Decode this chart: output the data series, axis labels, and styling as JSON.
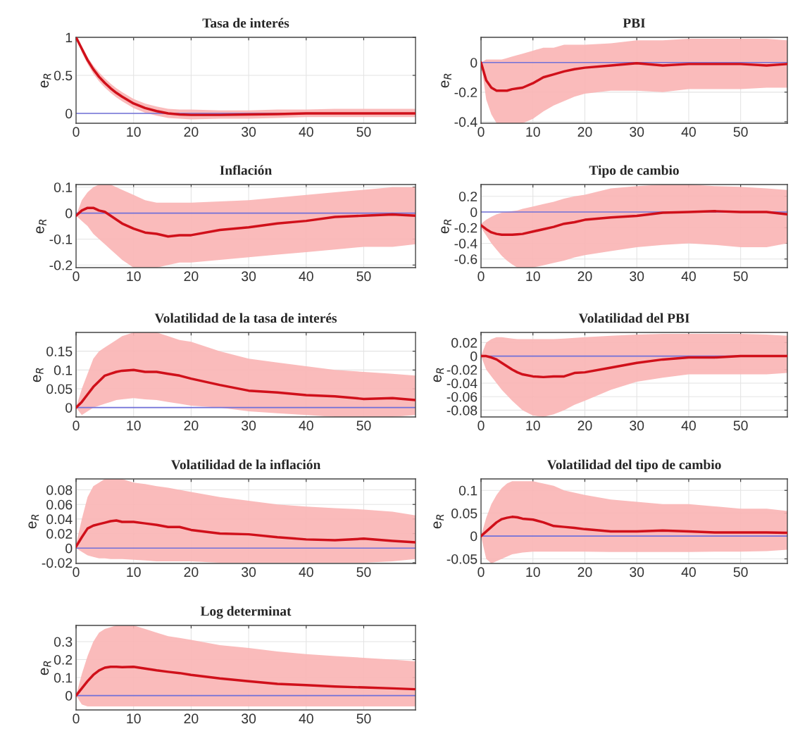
{
  "chart_data": [
    {
      "type": "line",
      "title": "Tasa de interés",
      "ylabel": "e$_{R}$",
      "xlim": [
        0,
        59
      ],
      "xticks": [
        0,
        10,
        20,
        30,
        40,
        50
      ],
      "ylim": [
        -0.13,
        1
      ],
      "yticks": [
        0,
        0.5,
        1
      ],
      "grid": true,
      "ref_lines": [
        {
          "axis": "y",
          "value": 0,
          "color": "#7070d8"
        }
      ],
      "x": [
        0,
        1,
        2,
        3,
        4,
        5,
        6,
        7,
        8,
        10,
        12,
        14,
        16,
        18,
        20,
        25,
        30,
        35,
        40,
        45,
        50,
        55,
        59
      ],
      "series": [
        {
          "color": "#d0101a",
          "values": [
            1,
            0.85,
            0.7,
            0.58,
            0.48,
            0.4,
            0.33,
            0.27,
            0.22,
            0.13,
            0.07,
            0.03,
            0,
            -0.015,
            -0.02,
            -0.02,
            -0.015,
            -0.01,
            0,
            0,
            0,
            0,
            0
          ],
          "lower": [
            1,
            0.8,
            0.65,
            0.52,
            0.42,
            0.34,
            0.27,
            0.21,
            0.16,
            0.07,
            0.01,
            -0.03,
            -0.06,
            -0.07,
            -0.08,
            -0.07,
            -0.07,
            -0.06,
            -0.05,
            -0.05,
            -0.05,
            -0.05,
            -0.05
          ],
          "upper": [
            1,
            0.88,
            0.74,
            0.63,
            0.54,
            0.46,
            0.39,
            0.33,
            0.28,
            0.19,
            0.13,
            0.09,
            0.06,
            0.05,
            0.05,
            0.04,
            0.04,
            0.05,
            0.05,
            0.06,
            0.06,
            0.06,
            0.06
          ]
        }
      ]
    },
    {
      "type": "line",
      "title": "PBI",
      "ylabel": "e$_{R}$",
      "xlim": [
        0,
        59
      ],
      "xticks": [
        0,
        10,
        20,
        30,
        40,
        50
      ],
      "ylim": [
        -0.41,
        0.17
      ],
      "yticks": [
        -0.4,
        -0.2,
        0
      ],
      "grid": true,
      "ref_lines": [
        {
          "axis": "y",
          "value": 0,
          "color": "#7070d8"
        }
      ],
      "x": [
        0,
        1,
        2,
        3,
        4,
        5,
        6,
        7,
        8,
        10,
        12,
        14,
        16,
        18,
        20,
        25,
        30,
        35,
        40,
        45,
        50,
        55,
        59
      ],
      "series": [
        {
          "color": "#d0101a",
          "values": [
            0,
            -0.12,
            -0.17,
            -0.19,
            -0.19,
            -0.19,
            -0.18,
            -0.175,
            -0.17,
            -0.14,
            -0.1,
            -0.08,
            -0.06,
            -0.045,
            -0.035,
            -0.02,
            -0.005,
            -0.02,
            -0.01,
            -0.01,
            -0.01,
            -0.02,
            -0.01
          ],
          "lower": [
            0,
            -0.25,
            -0.35,
            -0.41,
            -0.41,
            -0.41,
            -0.41,
            -0.41,
            -0.41,
            -0.38,
            -0.33,
            -0.29,
            -0.26,
            -0.23,
            -0.21,
            -0.19,
            -0.19,
            -0.2,
            -0.18,
            -0.18,
            -0.18,
            -0.17,
            -0.17
          ],
          "upper": [
            0,
            0.02,
            0.02,
            0.02,
            0.02,
            0.03,
            0.04,
            0.05,
            0.06,
            0.08,
            0.1,
            0.1,
            0.12,
            0.12,
            0.12,
            0.13,
            0.15,
            0.15,
            0.16,
            0.16,
            0.16,
            0.16,
            0.15
          ]
        }
      ]
    },
    {
      "type": "line",
      "title": "Inflación",
      "ylabel": "e$_{R}$",
      "xlim": [
        0,
        59
      ],
      "xticks": [
        0,
        10,
        20,
        30,
        40,
        50
      ],
      "ylim": [
        -0.21,
        0.11
      ],
      "yticks": [
        -0.2,
        -0.1,
        0,
        0.1
      ],
      "grid": true,
      "ref_lines": [
        {
          "axis": "y",
          "value": 0,
          "color": "#7070d8"
        }
      ],
      "x": [
        0,
        1,
        2,
        3,
        4,
        5,
        6,
        7,
        8,
        10,
        12,
        14,
        16,
        18,
        20,
        25,
        30,
        35,
        40,
        45,
        50,
        55,
        59
      ],
      "series": [
        {
          "color": "#d0101a",
          "values": [
            -0.01,
            0.01,
            0.02,
            0.02,
            0.01,
            0.005,
            -0.01,
            -0.025,
            -0.04,
            -0.06,
            -0.075,
            -0.08,
            -0.09,
            -0.085,
            -0.085,
            -0.065,
            -0.055,
            -0.04,
            -0.03,
            -0.015,
            -0.01,
            -0.005,
            -0.01
          ],
          "lower": [
            -0.01,
            -0.03,
            -0.05,
            -0.08,
            -0.1,
            -0.12,
            -0.14,
            -0.16,
            -0.18,
            -0.21,
            -0.21,
            -0.21,
            -0.2,
            -0.19,
            -0.19,
            -0.18,
            -0.17,
            -0.16,
            -0.15,
            -0.14,
            -0.13,
            -0.13,
            -0.12
          ],
          "upper": [
            -0.01,
            0.05,
            0.08,
            0.1,
            0.11,
            0.11,
            0.11,
            0.1,
            0.09,
            0.07,
            0.05,
            0.04,
            0.04,
            0.04,
            0.04,
            0.045,
            0.05,
            0.06,
            0.07,
            0.08,
            0.09,
            0.1,
            0.1
          ]
        }
      ]
    },
    {
      "type": "line",
      "title": "Tipo de cambio",
      "ylabel": "e$_{R}$",
      "xlim": [
        0,
        59
      ],
      "xticks": [
        0,
        10,
        20,
        30,
        40,
        50
      ],
      "ylim": [
        -0.71,
        0.35
      ],
      "yticks": [
        -0.6,
        -0.4,
        -0.2,
        0,
        0.2
      ],
      "grid": true,
      "ref_lines": [
        {
          "axis": "y",
          "value": 0,
          "color": "#7070d8"
        }
      ],
      "x": [
        0,
        1,
        2,
        3,
        4,
        5,
        6,
        7,
        8,
        10,
        12,
        14,
        16,
        18,
        20,
        25,
        30,
        35,
        40,
        45,
        50,
        55,
        59
      ],
      "series": [
        {
          "color": "#d0101a",
          "values": [
            -0.17,
            -0.22,
            -0.26,
            -0.28,
            -0.29,
            -0.29,
            -0.29,
            -0.285,
            -0.28,
            -0.25,
            -0.22,
            -0.19,
            -0.15,
            -0.13,
            -0.1,
            -0.07,
            -0.05,
            -0.01,
            0,
            0.01,
            0,
            0,
            -0.03
          ],
          "lower": [
            -0.2,
            -0.3,
            -0.4,
            -0.48,
            -0.56,
            -0.62,
            -0.67,
            -0.71,
            -0.71,
            -0.71,
            -0.68,
            -0.65,
            -0.62,
            -0.58,
            -0.55,
            -0.5,
            -0.45,
            -0.42,
            -0.4,
            -0.42,
            -0.45,
            -0.45,
            -0.4
          ],
          "upper": [
            -0.15,
            -0.1,
            -0.06,
            -0.03,
            -0.01,
            0,
            0.01,
            0.02,
            0.04,
            0.07,
            0.1,
            0.13,
            0.17,
            0.2,
            0.22,
            0.3,
            0.33,
            0.35,
            0.35,
            0.33,
            0.32,
            0.3,
            0.28
          ]
        }
      ]
    },
    {
      "type": "line",
      "title": "Volatilidad de la tasa de interés",
      "ylabel": "e$_{R}$",
      "xlim": [
        0,
        59
      ],
      "xticks": [
        0,
        10,
        20,
        30,
        40,
        50
      ],
      "ylim": [
        -0.025,
        0.2
      ],
      "yticks": [
        0,
        0.05,
        0.1,
        0.15
      ],
      "grid": true,
      "ref_lines": [
        {
          "axis": "y",
          "value": 0,
          "color": "#7070d8"
        }
      ],
      "x": [
        0,
        1,
        2,
        3,
        4,
        5,
        6,
        7,
        8,
        10,
        12,
        14,
        16,
        18,
        20,
        25,
        30,
        35,
        40,
        45,
        50,
        55,
        59
      ],
      "series": [
        {
          "color": "#d0101a",
          "values": [
            0,
            0.015,
            0.035,
            0.055,
            0.07,
            0.085,
            0.09,
            0.095,
            0.098,
            0.1,
            0.095,
            0.095,
            0.09,
            0.085,
            0.077,
            0.06,
            0.045,
            0.04,
            0.033,
            0.03,
            0.023,
            0.025,
            0.02
          ],
          "lower": [
            0,
            -0.02,
            -0.01,
            0,
            0.005,
            0.01,
            0.015,
            0.02,
            0.022,
            0.025,
            0.022,
            0.02,
            0.015,
            0.01,
            0.005,
            0,
            -0.01,
            -0.015,
            -0.02,
            -0.025,
            -0.025,
            -0.025,
            -0.02
          ],
          "upper": [
            0,
            0.05,
            0.09,
            0.13,
            0.15,
            0.16,
            0.17,
            0.18,
            0.19,
            0.2,
            0.2,
            0.2,
            0.19,
            0.18,
            0.175,
            0.15,
            0.13,
            0.12,
            0.11,
            0.1,
            0.095,
            0.09,
            0.085
          ]
        }
      ]
    },
    {
      "type": "line",
      "title": "Volatilidad del PBI",
      "ylabel": "e$_{R}$",
      "xlim": [
        0,
        59
      ],
      "xticks": [
        0,
        10,
        20,
        30,
        40,
        50
      ],
      "ylim": [
        -0.09,
        0.035
      ],
      "yticks": [
        -0.08,
        -0.06,
        -0.04,
        -0.02,
        0,
        0.02
      ],
      "grid": true,
      "ref_lines": [
        {
          "axis": "y",
          "value": 0,
          "color": "#7070d8"
        }
      ],
      "x": [
        0,
        1,
        2,
        3,
        4,
        5,
        6,
        7,
        8,
        10,
        12,
        14,
        16,
        18,
        20,
        25,
        30,
        35,
        40,
        45,
        50,
        55,
        59
      ],
      "series": [
        {
          "color": "#d0101a",
          "values": [
            0,
            0,
            -0.002,
            -0.005,
            -0.01,
            -0.015,
            -0.02,
            -0.024,
            -0.027,
            -0.03,
            -0.031,
            -0.03,
            -0.03,
            -0.025,
            -0.024,
            -0.017,
            -0.01,
            -0.005,
            -0.002,
            -0.002,
            0,
            0,
            0
          ],
          "lower": [
            0,
            -0.02,
            -0.03,
            -0.04,
            -0.05,
            -0.058,
            -0.066,
            -0.073,
            -0.08,
            -0.088,
            -0.09,
            -0.086,
            -0.08,
            -0.072,
            -0.066,
            -0.05,
            -0.038,
            -0.032,
            -0.027,
            -0.027,
            -0.027,
            -0.027,
            -0.025
          ],
          "upper": [
            0,
            0.02,
            0.025,
            0.028,
            0.028,
            0.027,
            0.026,
            0.025,
            0.025,
            0.025,
            0.025,
            0.025,
            0.026,
            0.027,
            0.028,
            0.03,
            0.032,
            0.033,
            0.033,
            0.033,
            0.033,
            0.032,
            0.03
          ]
        }
      ]
    },
    {
      "type": "line",
      "title": "Volatilidad de la inflación",
      "ylabel": "e$_{R}$",
      "xlim": [
        0,
        59
      ],
      "xticks": [
        0,
        10,
        20,
        30,
        40,
        50
      ],
      "ylim": [
        -0.021,
        0.095
      ],
      "yticks": [
        -0.02,
        0,
        0.02,
        0.04,
        0.06,
        0.08
      ],
      "grid": true,
      "ref_lines": [
        {
          "axis": "y",
          "value": 0,
          "color": "#7070d8"
        }
      ],
      "x": [
        0,
        1,
        2,
        3,
        4,
        5,
        6,
        7,
        8,
        10,
        12,
        14,
        16,
        18,
        20,
        25,
        30,
        35,
        40,
        45,
        50,
        55,
        59
      ],
      "series": [
        {
          "color": "#d0101a",
          "values": [
            0.002,
            0.015,
            0.027,
            0.031,
            0.033,
            0.035,
            0.037,
            0.038,
            0.036,
            0.036,
            0.034,
            0.032,
            0.029,
            0.029,
            0.025,
            0.02,
            0.019,
            0.015,
            0.012,
            0.011,
            0.013,
            0.01,
            0.008
          ],
          "lower": [
            0,
            -0.005,
            -0.01,
            -0.012,
            -0.014,
            -0.014,
            -0.015,
            -0.015,
            -0.015,
            -0.016,
            -0.017,
            -0.018,
            -0.018,
            -0.018,
            -0.018,
            -0.02,
            -0.02,
            -0.02,
            -0.02,
            -0.02,
            -0.02,
            -0.018,
            -0.015
          ],
          "upper": [
            0.005,
            0.04,
            0.07,
            0.085,
            0.09,
            0.095,
            0.095,
            0.095,
            0.095,
            0.09,
            0.088,
            0.085,
            0.083,
            0.08,
            0.077,
            0.07,
            0.065,
            0.06,
            0.057,
            0.055,
            0.053,
            0.05,
            0.045
          ]
        }
      ]
    },
    {
      "type": "line",
      "title": "Volatilidad del tipo de cambio",
      "ylabel": "e$_{R}$",
      "xlim": [
        0,
        59
      ],
      "xticks": [
        0,
        10,
        20,
        30,
        40,
        50
      ],
      "ylim": [
        -0.06,
        0.125
      ],
      "yticks": [
        -0.05,
        0,
        0.05,
        0.1
      ],
      "grid": true,
      "ref_lines": [
        {
          "axis": "y",
          "value": 0,
          "color": "#7070d8"
        }
      ],
      "x": [
        0,
        1,
        2,
        3,
        4,
        5,
        6,
        7,
        8,
        10,
        12,
        14,
        16,
        18,
        20,
        25,
        30,
        35,
        40,
        45,
        50,
        55,
        59
      ],
      "series": [
        {
          "color": "#d0101a",
          "values": [
            0,
            0.01,
            0.02,
            0.03,
            0.037,
            0.04,
            0.042,
            0.041,
            0.038,
            0.036,
            0.03,
            0.022,
            0.02,
            0.018,
            0.015,
            0.01,
            0.01,
            0.012,
            0.01,
            0.008,
            0.008,
            0.008,
            0.007
          ],
          "lower": [
            0,
            -0.05,
            -0.06,
            -0.055,
            -0.05,
            -0.045,
            -0.04,
            -0.038,
            -0.036,
            -0.034,
            -0.034,
            -0.034,
            -0.034,
            -0.034,
            -0.034,
            -0.035,
            -0.035,
            -0.035,
            -0.035,
            -0.034,
            -0.034,
            -0.033,
            -0.03
          ],
          "upper": [
            0,
            0.04,
            0.07,
            0.09,
            0.105,
            0.115,
            0.12,
            0.12,
            0.12,
            0.12,
            0.115,
            0.11,
            0.1,
            0.095,
            0.09,
            0.08,
            0.075,
            0.07,
            0.07,
            0.065,
            0.06,
            0.06,
            0.055
          ]
        }
      ]
    },
    {
      "type": "line",
      "title": "Log determinat",
      "ylabel": "e$_{R}$",
      "xlim": [
        0,
        59
      ],
      "xticks": [
        0,
        10,
        20,
        30,
        40,
        50
      ],
      "ylim": [
        -0.08,
        0.39
      ],
      "yticks": [
        0,
        0.1,
        0.2,
        0.3
      ],
      "grid": true,
      "ref_lines": [
        {
          "axis": "y",
          "value": 0,
          "color": "#7070d8"
        }
      ],
      "x": [
        0,
        1,
        2,
        3,
        4,
        5,
        6,
        7,
        8,
        10,
        12,
        14,
        16,
        18,
        20,
        25,
        30,
        35,
        40,
        45,
        50,
        55,
        59
      ],
      "series": [
        {
          "color": "#d0101a",
          "values": [
            0,
            0.04,
            0.08,
            0.115,
            0.14,
            0.155,
            0.16,
            0.16,
            0.158,
            0.16,
            0.15,
            0.14,
            0.132,
            0.125,
            0.115,
            0.095,
            0.08,
            0.065,
            0.058,
            0.05,
            0.045,
            0.04,
            0.035
          ],
          "lower": [
            0,
            -0.05,
            -0.06,
            -0.06,
            -0.06,
            -0.06,
            -0.06,
            -0.06,
            -0.06,
            -0.06,
            -0.06,
            -0.06,
            -0.06,
            -0.06,
            -0.06,
            -0.06,
            -0.06,
            -0.06,
            -0.06,
            -0.06,
            -0.06,
            -0.06,
            -0.06
          ],
          "upper": [
            0,
            0.12,
            0.22,
            0.3,
            0.35,
            0.37,
            0.38,
            0.39,
            0.39,
            0.39,
            0.37,
            0.35,
            0.33,
            0.32,
            0.31,
            0.28,
            0.265,
            0.245,
            0.23,
            0.22,
            0.21,
            0.2,
            0.19
          ]
        }
      ]
    }
  ]
}
